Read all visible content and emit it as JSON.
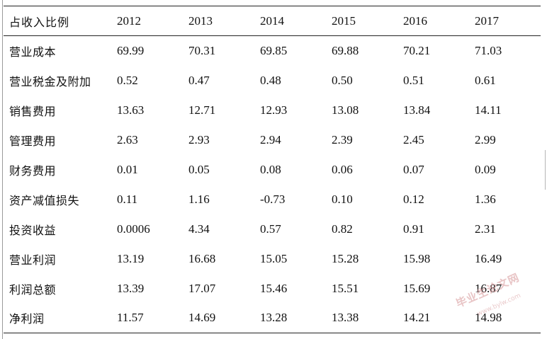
{
  "table": {
    "header": [
      "占收入比例",
      "2012",
      "2013",
      "2014",
      "2015",
      "2016",
      "2017"
    ],
    "rows": [
      {
        "label": "营业成本",
        "values": [
          "69.99",
          "70.31",
          "69.85",
          "69.88",
          "70.21",
          "71.03"
        ]
      },
      {
        "label": "营业税金及附加",
        "values": [
          "0.52",
          "0.47",
          "0.48",
          "0.50",
          "0.51",
          "0.61"
        ]
      },
      {
        "label": "销售费用",
        "values": [
          "13.63",
          "12.71",
          "12.93",
          "13.08",
          "13.84",
          "14.11"
        ]
      },
      {
        "label": "管理费用",
        "values": [
          "2.63",
          "2.93",
          "2.94",
          "2.39",
          "2.45",
          "2.99"
        ]
      },
      {
        "label": "财务费用",
        "values": [
          "0.01",
          "0.05",
          "0.08",
          "0.06",
          "0.07",
          "0.09"
        ]
      },
      {
        "label": "资产减值损失",
        "values": [
          "0.11",
          "1.16",
          "-0.73",
          "0.10",
          "0.12",
          "1.36"
        ]
      },
      {
        "label": "投资收益",
        "values": [
          "0.0006",
          "4.34",
          "0.57",
          "0.82",
          "0.91",
          "2.31"
        ]
      },
      {
        "label": "营业利润",
        "values": [
          "13.19",
          "16.68",
          "15.05",
          "15.28",
          "15.98",
          "16.49"
        ]
      },
      {
        "label": "利润总额",
        "values": [
          "13.39",
          "17.07",
          "15.46",
          "15.51",
          "15.69",
          "16.87"
        ]
      },
      {
        "label": "净利润",
        "values": [
          "11.57",
          "14.69",
          "13.28",
          "13.38",
          "14.21",
          "14.98"
        ]
      }
    ]
  },
  "watermark": {
    "text": "毕业生论文网",
    "subtext": "www.bylw.com"
  }
}
